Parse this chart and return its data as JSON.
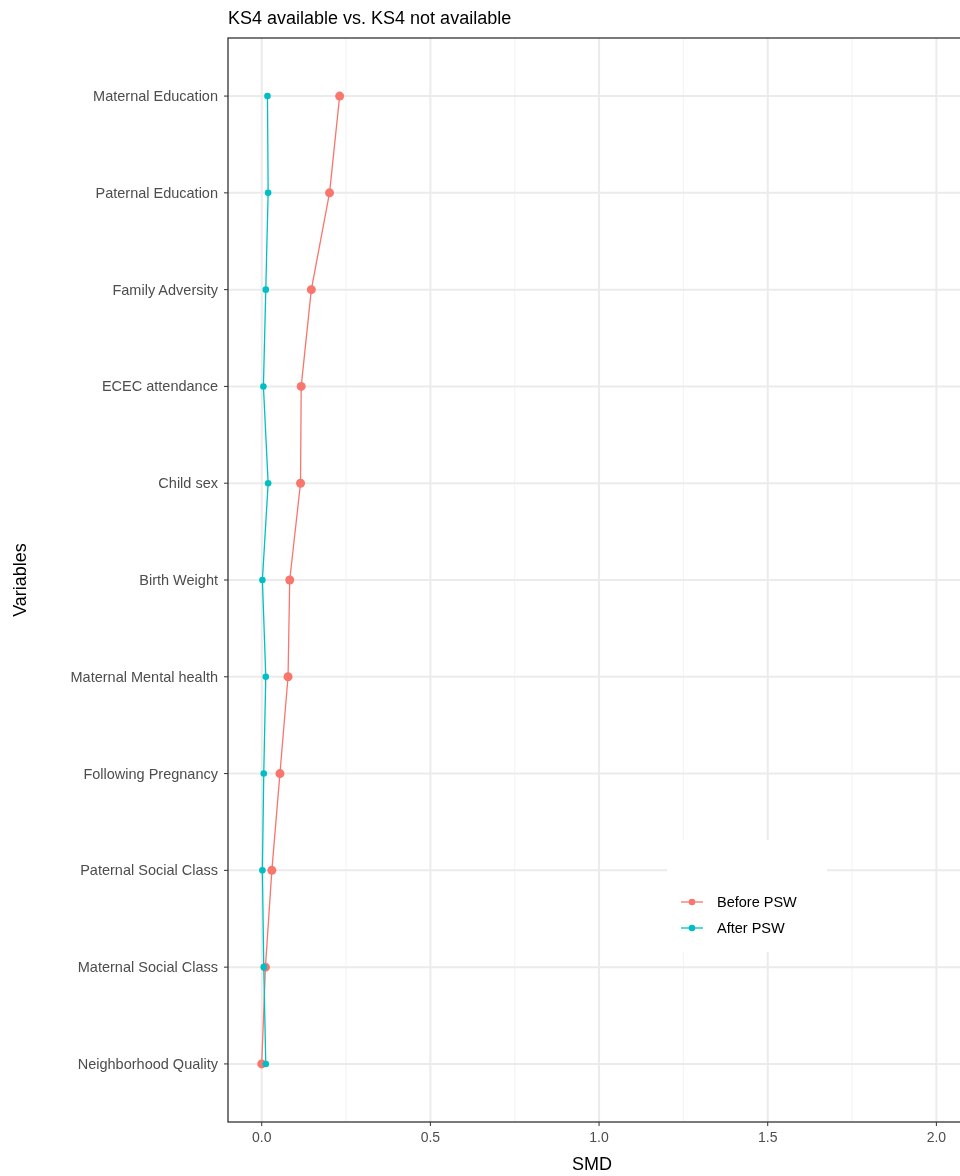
{
  "chart_data": {
    "type": "line",
    "title": "KS4 available vs. KS4 not available",
    "xlabel": "SMD",
    "ylabel": "Variables",
    "orientation": "horizontal",
    "categories": [
      "Maternal Education",
      "Paternal Education",
      "Family Adversity",
      "ECEC attendance",
      "Child sex",
      "Birth Weight",
      "Maternal Mental health",
      "Following Pregnancy",
      "Paternal Social Class",
      "Maternal Social Class",
      "Neighborhood Quality"
    ],
    "series": [
      {
        "name": "Before PSW",
        "color": "#f8766d",
        "values": [
          0.231,
          0.201,
          0.147,
          0.117,
          0.115,
          0.083,
          0.078,
          0.054,
          0.03,
          0.011,
          0.0
        ]
      },
      {
        "name": "After PSW",
        "color": "#00bfc4",
        "values": [
          0.017,
          0.019,
          0.012,
          0.005,
          0.019,
          0.002,
          0.012,
          0.006,
          0.002,
          0.006,
          0.012
        ]
      }
    ],
    "xlim": [
      -0.1,
      2.07
    ],
    "xticks": [
      {
        "value": 0,
        "label": "0.0"
      },
      0.5,
      {
        "value": 1,
        "label": "1.0"
      },
      1.5,
      {
        "value": 2,
        "label": "2.0"
      }
    ],
    "grid": true,
    "legend": "bottom right",
    "marker": "circle",
    "line_style": "solid"
  }
}
